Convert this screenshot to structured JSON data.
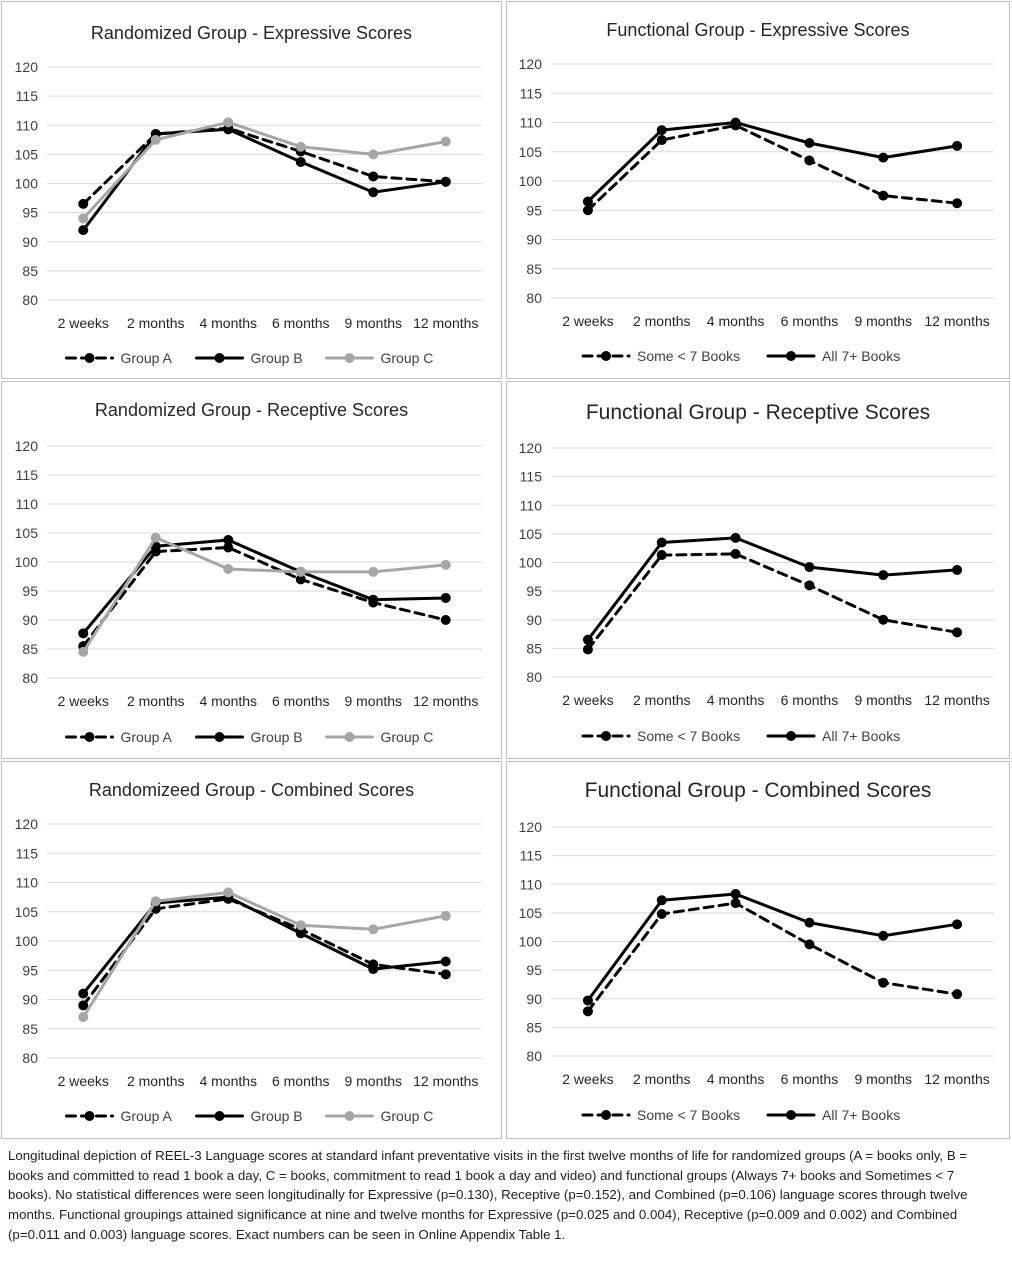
{
  "chart_data": [
    {
      "type": "line",
      "title": "Randomized Group - Expressive Scores",
      "categories": [
        "2 weeks",
        "2 months",
        "4 months",
        "6 months",
        "9 months",
        "12 months"
      ],
      "ylim": [
        80,
        120
      ],
      "yticks": [
        80,
        85,
        90,
        95,
        100,
        105,
        110,
        115,
        120
      ],
      "grid": true,
      "legend_position": "bottom",
      "series": [
        {
          "name": "Group A",
          "values": [
            96.5,
            108.5,
            109.5,
            105.5,
            101.2,
            100.3
          ],
          "style": "dashed",
          "color": "#000000"
        },
        {
          "name": "Group B",
          "values": [
            92.0,
            108.5,
            109.3,
            103.7,
            98.5,
            100.3
          ],
          "style": "solid",
          "color": "#000000"
        },
        {
          "name": "Group C",
          "values": [
            94.0,
            107.5,
            110.5,
            106.3,
            105.0,
            107.2
          ],
          "style": "solid",
          "color": "#a6a6a6"
        }
      ]
    },
    {
      "type": "line",
      "title": "Functional Group - Expressive Scores",
      "categories": [
        "2 weeks",
        "2 months",
        "4 months",
        "6 months",
        "9 months",
        "12 months"
      ],
      "ylim": [
        80,
        120
      ],
      "yticks": [
        80,
        85,
        90,
        95,
        100,
        105,
        110,
        115,
        120
      ],
      "grid": true,
      "legend_position": "bottom",
      "series": [
        {
          "name": "Some < 7 Books",
          "values": [
            95.0,
            107.0,
            109.5,
            103.5,
            97.5,
            96.2
          ],
          "style": "dashed",
          "color": "#000000"
        },
        {
          "name": "All 7+ Books",
          "values": [
            96.5,
            108.7,
            110.0,
            106.5,
            104.0,
            106.0
          ],
          "style": "solid",
          "color": "#000000"
        }
      ]
    },
    {
      "type": "line",
      "title": "Randomized  Group - Receptive Scores",
      "categories": [
        "2 weeks",
        "2 months",
        "4 months",
        "6 months",
        "9 months",
        "12 months"
      ],
      "ylim": [
        80,
        120
      ],
      "yticks": [
        80,
        85,
        90,
        95,
        100,
        105,
        110,
        115,
        120
      ],
      "grid": true,
      "legend_position": "bottom",
      "series": [
        {
          "name": "Group A",
          "values": [
            85.5,
            101.8,
            102.5,
            97.0,
            93.0,
            90.0
          ],
          "style": "dashed",
          "color": "#000000"
        },
        {
          "name": "Group B",
          "values": [
            87.7,
            102.7,
            103.8,
            98.3,
            93.5,
            93.8
          ],
          "style": "solid",
          "color": "#000000"
        },
        {
          "name": "Group C",
          "values": [
            84.5,
            104.2,
            98.8,
            98.3,
            98.3,
            99.5
          ],
          "style": "solid",
          "color": "#a6a6a6"
        }
      ]
    },
    {
      "type": "line",
      "title": "Functional Group - Receptive Scores",
      "categories": [
        "2 weeks",
        "2 months",
        "4 months",
        "6 months",
        "9 months",
        "12 months"
      ],
      "ylim": [
        80,
        120
      ],
      "yticks": [
        80,
        85,
        90,
        95,
        100,
        105,
        110,
        115,
        120
      ],
      "grid": true,
      "legend_position": "bottom",
      "series": [
        {
          "name": "Some < 7 Books",
          "values": [
            84.8,
            101.3,
            101.5,
            96.0,
            90.0,
            87.8
          ],
          "style": "dashed",
          "color": "#000000"
        },
        {
          "name": "All 7+ Books",
          "values": [
            86.5,
            103.5,
            104.3,
            99.2,
            97.8,
            98.7
          ],
          "style": "solid",
          "color": "#000000"
        }
      ]
    },
    {
      "type": "line",
      "title": "Randomizeed Group - Combined Scores",
      "categories": [
        "2 weeks",
        "2 months",
        "4 months",
        "6 months",
        "9 months",
        "12 months"
      ],
      "ylim": [
        80,
        120
      ],
      "yticks": [
        80,
        85,
        90,
        95,
        100,
        105,
        110,
        115,
        120
      ],
      "grid": true,
      "legend_position": "bottom",
      "series": [
        {
          "name": "Group A",
          "values": [
            89.0,
            105.5,
            107.2,
            102.0,
            96.0,
            94.3
          ],
          "style": "dashed",
          "color": "#000000"
        },
        {
          "name": "Group B",
          "values": [
            91.0,
            106.5,
            107.5,
            101.3,
            95.2,
            96.5
          ],
          "style": "solid",
          "color": "#000000"
        },
        {
          "name": "Group C",
          "values": [
            87.0,
            106.8,
            108.3,
            102.7,
            102.0,
            104.3
          ],
          "style": "solid",
          "color": "#a6a6a6"
        }
      ]
    },
    {
      "type": "line",
      "title": "Functional Group - Combined Scores",
      "categories": [
        "2 weeks",
        "2 months",
        "4 months",
        "6 months",
        "9 months",
        "12 months"
      ],
      "ylim": [
        80,
        120
      ],
      "yticks": [
        80,
        85,
        90,
        95,
        100,
        105,
        110,
        115,
        120
      ],
      "grid": true,
      "legend_position": "bottom",
      "series": [
        {
          "name": "Some < 7 Books",
          "values": [
            87.8,
            104.8,
            106.7,
            99.5,
            92.8,
            90.8
          ],
          "style": "dashed",
          "color": "#000000"
        },
        {
          "name": "All 7+ Books",
          "values": [
            89.7,
            107.2,
            108.3,
            103.3,
            101.0,
            103.0
          ],
          "style": "solid",
          "color": "#000000"
        }
      ]
    }
  ],
  "caption": "Longitudinal depiction of REEL-3 Language scores at standard infant preventative visits in the first twelve months of life for randomized groups (A = books only, B = books and committed to read 1 book a day, C = books, commitment to read 1 book a day and video) and functional groups (Always 7+ books and Sometimes < 7 books).  No statistical differences were seen longitudinally for Expressive (p=0.130), Receptive (p=0.152), and Combined (p=0.106) language scores through twelve months.  Functional groupings attained significance at nine and twelve months for Expressive (p=0.025 and 0.004), Receptive (p=0.009 and 0.002) and Combined (p=0.011 and 0.003) language scores.  Exact numbers can be seen in Online Appendix Table 1."
}
